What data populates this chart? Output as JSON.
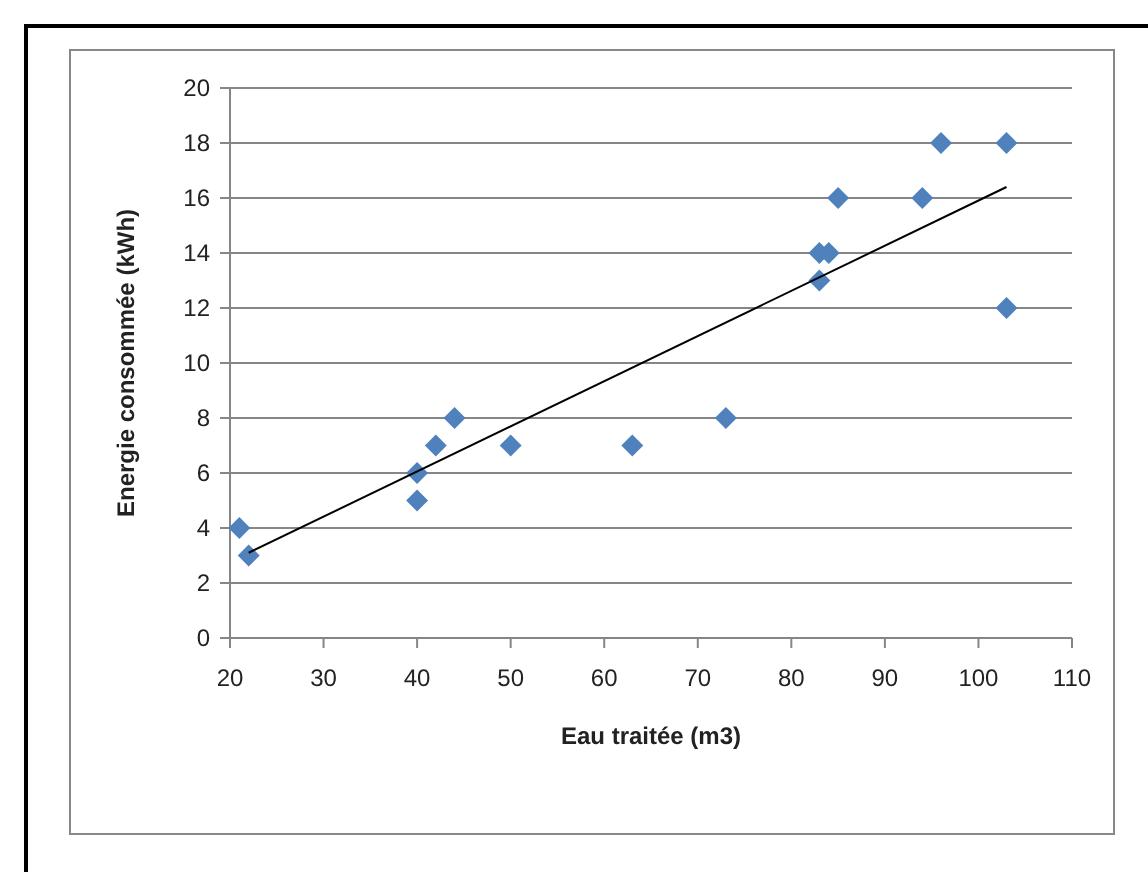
{
  "chart_data": {
    "type": "scatter",
    "xlabel": "Eau traitée (m3)",
    "ylabel": "Energie consommée (kWh)",
    "xlim": [
      20,
      110
    ],
    "xticks": [
      20,
      30,
      40,
      50,
      60,
      70,
      80,
      90,
      100,
      110
    ],
    "ylim": [
      0,
      20
    ],
    "yticks": [
      0,
      2,
      4,
      6,
      8,
      10,
      12,
      14,
      16,
      18,
      20
    ],
    "grid": "y",
    "marker": "diamond",
    "series": [
      {
        "color": "#4f81bd",
        "x": [
          21,
          22,
          40,
          40,
          42,
          44,
          50,
          63,
          73,
          83,
          83,
          84,
          85,
          94,
          96,
          103,
          103
        ],
        "values": [
          4,
          3,
          6,
          5,
          7,
          8,
          7,
          7,
          8,
          13,
          14,
          14,
          16,
          16,
          18,
          18,
          12
        ]
      },
      {
        "type": "line",
        "color": "#000000",
        "marker": "none",
        "line_style": "solid",
        "x": [
          22,
          103
        ],
        "values": [
          3.1,
          16.4
        ]
      }
    ]
  }
}
